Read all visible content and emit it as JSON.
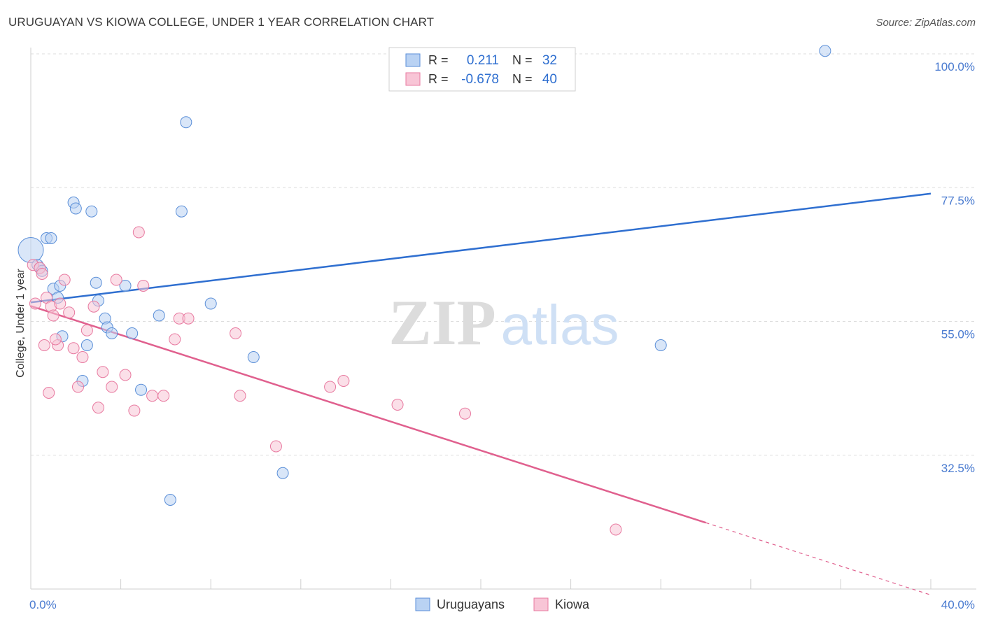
{
  "title": "URUGUAYAN VS KIOWA COLLEGE, UNDER 1 YEAR CORRELATION CHART",
  "source": "Source: ZipAtlas.com",
  "watermark": {
    "bold": "ZIP",
    "light": "atlas"
  },
  "legend_stats": [
    {
      "r_label": "R =",
      "r_value": "0.211",
      "n_label": "N =",
      "n_value": "32",
      "color": "#5b8fd8",
      "fill": "#b9d2f3"
    },
    {
      "r_label": "R =",
      "r_value": "-0.678",
      "n_label": "N =",
      "n_value": "40",
      "color": "#e87aa0",
      "fill": "#f8c5d6"
    }
  ],
  "chart_data": {
    "type": "scatter",
    "title": "URUGUAYAN VS KIOWA COLLEGE, UNDER 1 YEAR CORRELATION CHART",
    "xlabel": "",
    "ylabel": "College, Under 1 year",
    "xlim": [
      0,
      40
    ],
    "ylim": [
      10,
      102
    ],
    "x_tick_labels": [
      "0.0%",
      "40.0%"
    ],
    "y_ticks": [
      32.5,
      55.0,
      77.5,
      100.0
    ],
    "y_tick_labels": [
      "32.5%",
      "55.0%",
      "77.5%",
      "100.0%"
    ],
    "grid": true,
    "legend": [
      "Uruguayans",
      "Kiowa"
    ],
    "series": [
      {
        "name": "Uruguayans",
        "color": "#5b8fd8",
        "fill": "#b9d2f3",
        "points": [
          [
            0.0,
            67.0
          ],
          [
            0.3,
            64.5
          ],
          [
            0.4,
            64.0
          ],
          [
            0.5,
            63.5
          ],
          [
            0.7,
            69.0
          ],
          [
            0.9,
            69.0
          ],
          [
            1.0,
            60.5
          ],
          [
            1.2,
            59.0
          ],
          [
            1.3,
            61.0
          ],
          [
            1.4,
            52.5
          ],
          [
            1.9,
            75.0
          ],
          [
            2.0,
            74.0
          ],
          [
            2.3,
            45.0
          ],
          [
            2.5,
            51.0
          ],
          [
            2.7,
            73.5
          ],
          [
            2.9,
            61.5
          ],
          [
            3.0,
            58.5
          ],
          [
            3.3,
            55.5
          ],
          [
            3.4,
            54.0
          ],
          [
            3.6,
            53.0
          ],
          [
            4.2,
            61.0
          ],
          [
            4.5,
            53.0
          ],
          [
            4.9,
            43.5
          ],
          [
            5.7,
            56.0
          ],
          [
            6.2,
            25.0
          ],
          [
            6.7,
            73.5
          ],
          [
            6.9,
            88.5
          ],
          [
            8.0,
            58.0
          ],
          [
            9.9,
            49.0
          ],
          [
            11.2,
            29.5
          ],
          [
            28.0,
            51.0
          ],
          [
            35.3,
            100.5
          ]
        ]
      },
      {
        "name": "Kiowa",
        "color": "#e87aa0",
        "fill": "#f8c5d6",
        "points": [
          [
            0.1,
            64.5
          ],
          [
            0.4,
            64.0
          ],
          [
            0.5,
            63.0
          ],
          [
            0.7,
            59.0
          ],
          [
            0.9,
            57.5
          ],
          [
            0.6,
            51.0
          ],
          [
            0.8,
            43.0
          ],
          [
            1.0,
            56.0
          ],
          [
            1.2,
            51.0
          ],
          [
            1.3,
            58.0
          ],
          [
            1.5,
            62.0
          ],
          [
            1.7,
            56.5
          ],
          [
            1.9,
            50.5
          ],
          [
            2.1,
            44.0
          ],
          [
            2.3,
            49.0
          ],
          [
            2.5,
            53.5
          ],
          [
            2.8,
            57.5
          ],
          [
            3.0,
            40.5
          ],
          [
            3.2,
            46.5
          ],
          [
            3.6,
            44.0
          ],
          [
            3.8,
            62.0
          ],
          [
            4.2,
            46.0
          ],
          [
            4.6,
            40.0
          ],
          [
            4.8,
            70.0
          ],
          [
            5.0,
            61.0
          ],
          [
            5.4,
            42.5
          ],
          [
            5.9,
            42.5
          ],
          [
            6.4,
            52.0
          ],
          [
            6.6,
            55.5
          ],
          [
            7.0,
            55.5
          ],
          [
            9.1,
            53.0
          ],
          [
            9.3,
            42.5
          ],
          [
            10.9,
            34.0
          ],
          [
            13.3,
            44.0
          ],
          [
            13.9,
            45.0
          ],
          [
            16.3,
            41.0
          ],
          [
            19.3,
            39.5
          ],
          [
            26.0,
            20.0
          ],
          [
            0.2,
            58.0
          ],
          [
            1.1,
            52.0
          ]
        ]
      }
    ],
    "trendlines": [
      {
        "series": "Uruguayans",
        "x": [
          0,
          40
        ],
        "y": [
          58.2,
          76.5
        ],
        "dashed_from": null
      },
      {
        "series": "Kiowa",
        "x": [
          0,
          40
        ],
        "y": [
          57.6,
          9.0
        ],
        "dashed_from": 30.0
      }
    ]
  }
}
